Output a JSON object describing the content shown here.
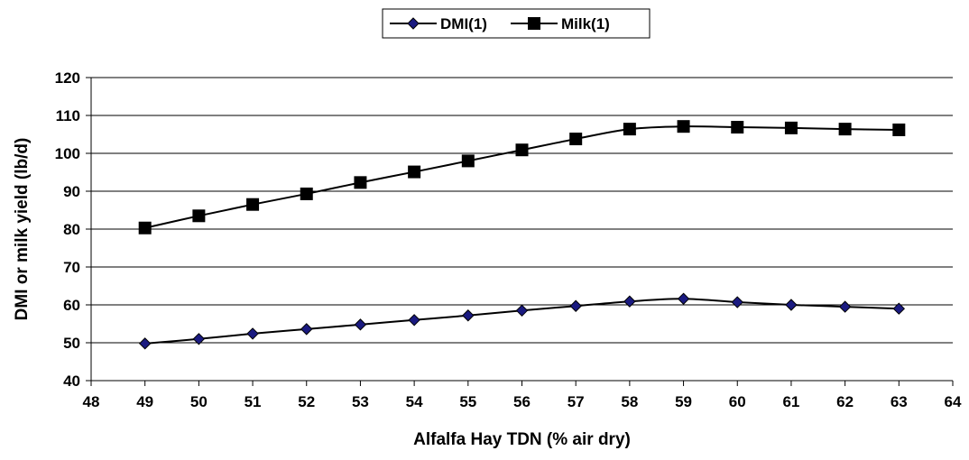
{
  "chart_data": {
    "type": "line",
    "title": "",
    "xlabel": "Alfalfa Hay TDN (% air dry)",
    "ylabel": "DMI or milk yield (lb/d)",
    "xlim": [
      48,
      64
    ],
    "ylim": [
      40,
      120
    ],
    "x_ticks": [
      48,
      49,
      50,
      51,
      52,
      53,
      54,
      55,
      56,
      57,
      58,
      59,
      60,
      61,
      62,
      63,
      64
    ],
    "y_ticks": [
      40,
      50,
      60,
      70,
      80,
      90,
      100,
      110,
      120
    ],
    "grid": "horizontal",
    "legend_position": "top-center",
    "x": [
      49,
      50,
      51,
      52,
      53,
      54,
      55,
      56,
      57,
      58,
      59,
      60,
      61,
      62,
      63
    ],
    "series": [
      {
        "name": "DMI(1)",
        "marker": "diamond",
        "color": "#000000",
        "marker_fill": "#1a1a80",
        "values": [
          49.8,
          51.0,
          52.4,
          53.6,
          54.8,
          56.0,
          57.2,
          58.5,
          59.7,
          60.9,
          61.6,
          60.7,
          60.0,
          59.5,
          59.0
        ]
      },
      {
        "name": "Milk(1)",
        "marker": "square",
        "color": "#000000",
        "marker_fill": "#000000",
        "values": [
          80.3,
          83.5,
          86.5,
          89.3,
          92.3,
          95.1,
          98.0,
          100.9,
          103.8,
          106.4,
          107.1,
          106.9,
          106.7,
          106.4,
          106.2
        ]
      }
    ]
  }
}
